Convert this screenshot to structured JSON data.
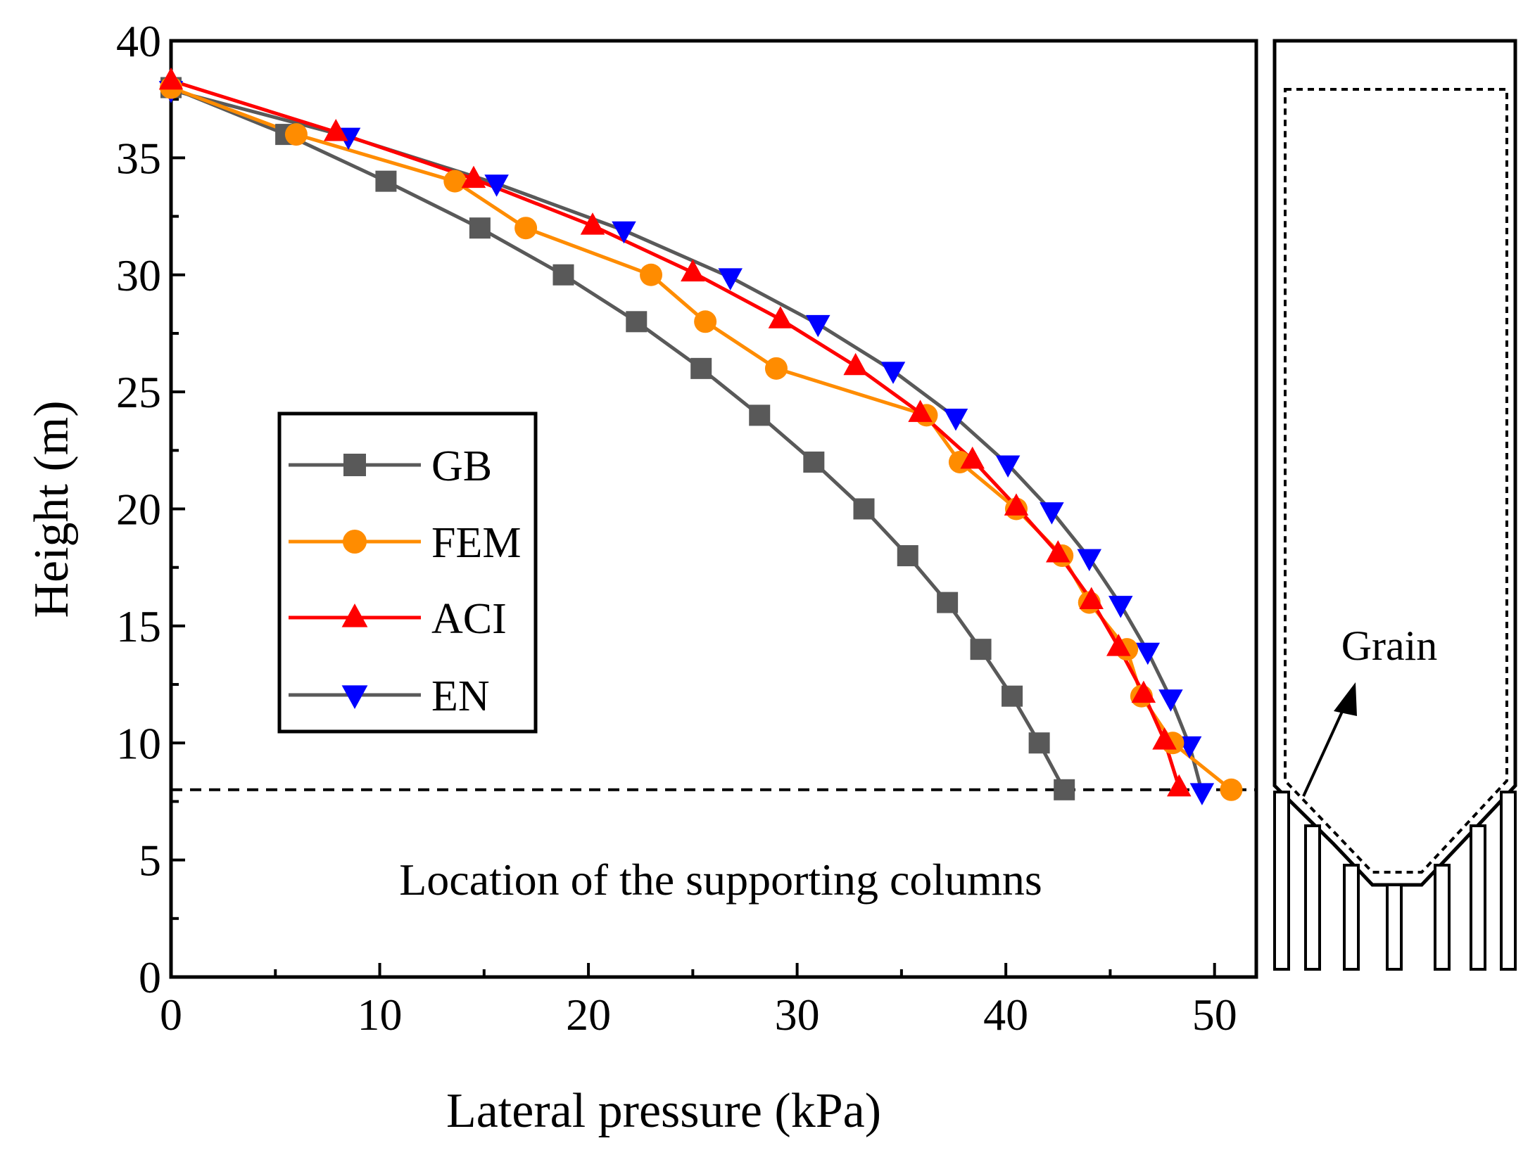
{
  "chart_data": {
    "type": "line",
    "xlabel": "Lateral pressure (kPa)",
    "ylabel": "Height (m)",
    "xlim": [
      0,
      52
    ],
    "ylim": [
      0,
      40
    ],
    "xticks": [
      0,
      10,
      20,
      30,
      40,
      50
    ],
    "yticks": [
      0,
      5,
      10,
      15,
      20,
      25,
      30,
      35,
      40
    ],
    "x_minor_step": 5,
    "y_minor_step": 2.5,
    "legend_position": "middle-left",
    "series": [
      {
        "name": "GB",
        "color": "#595959",
        "marker": "square",
        "x": [
          0,
          5.5,
          10.3,
          14.8,
          18.8,
          22.3,
          25.4,
          28.2,
          30.8,
          33.2,
          35.3,
          37.2,
          38.8,
          40.3,
          41.6,
          42.8
        ],
        "y": [
          38,
          36,
          34,
          32,
          30,
          28,
          26,
          24,
          22,
          20,
          18,
          16,
          14,
          12,
          10,
          8
        ]
      },
      {
        "name": "FEM",
        "color": "#FF8C00",
        "marker": "circle",
        "x": [
          0,
          6,
          13.6,
          17,
          23,
          25.6,
          29,
          36.2,
          37.8,
          40.5,
          42.7,
          44,
          45.8,
          46.5,
          48,
          50.8
        ],
        "y": [
          38,
          36,
          34,
          32,
          30,
          28,
          26,
          24,
          22,
          20,
          18,
          16,
          14,
          12,
          10,
          8
        ]
      },
      {
        "name": "ACI",
        "color": "#FF0000",
        "marker": "triangle-up",
        "x": [
          0,
          7.9,
          14.5,
          20.2,
          25,
          29.2,
          32.8,
          35.9,
          38.4,
          40.5,
          42.5,
          44.1,
          45.4,
          46.6,
          47.6,
          48.3
        ],
        "y": [
          38.3,
          36.1,
          34.1,
          32.1,
          30.1,
          28.1,
          26.1,
          24.1,
          22.1,
          20.1,
          18.1,
          16.1,
          14.1,
          12.1,
          10.1,
          8.1
        ]
      },
      {
        "name": "EN",
        "color": "#0000FF",
        "line_color": "#595959",
        "marker": "triangle-down",
        "x": [
          0,
          8.5,
          15.6,
          21.7,
          26.8,
          31.0,
          34.6,
          37.6,
          40.1,
          42.2,
          44.0,
          45.5,
          46.8,
          47.9,
          48.8,
          49.4
        ],
        "y": [
          37.9,
          35.9,
          33.9,
          31.9,
          29.9,
          27.9,
          25.9,
          23.9,
          21.9,
          19.9,
          17.9,
          15.9,
          13.9,
          11.9,
          9.9,
          7.9
        ]
      }
    ],
    "reference_line": {
      "y": 8,
      "style": "dashed"
    },
    "annotation": "Location of the supporting columns"
  },
  "silo_diagram": {
    "label": "Grain"
  }
}
